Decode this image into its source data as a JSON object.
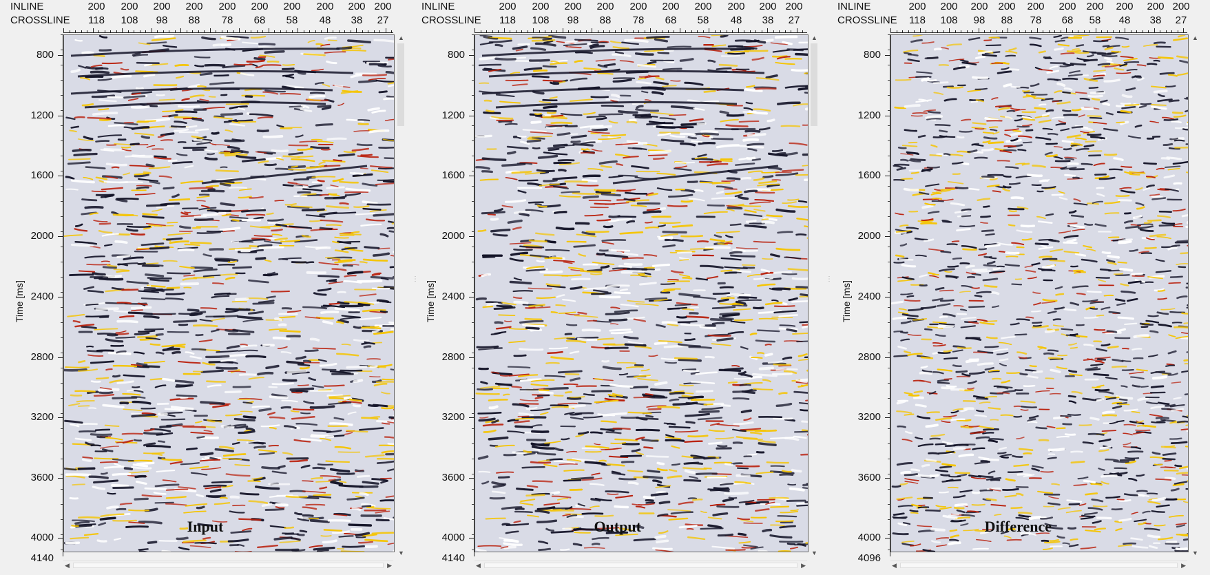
{
  "header": {
    "inline_label": "INLINE",
    "crossline_label": "CROSSLINE",
    "inline_values": [
      "200",
      "200",
      "200",
      "200",
      "200",
      "200",
      "200",
      "200",
      "200",
      "200"
    ],
    "crossline_values": [
      "118",
      "108",
      "98",
      "88",
      "78",
      "68",
      "58",
      "48",
      "38",
      "27"
    ]
  },
  "axis": {
    "title": "Time [ms]",
    "ticks": [
      "800",
      "1200",
      "1600",
      "2000",
      "2400",
      "2800",
      "3200",
      "3600",
      "4000"
    ]
  },
  "panels": [
    {
      "id": "input",
      "title": "Input",
      "end_label": "4140"
    },
    {
      "id": "output",
      "title": "Output",
      "end_label": "4140"
    },
    {
      "id": "difference",
      "title": "Difference",
      "end_label": "4096"
    }
  ],
  "colors": {
    "background": "#f0f0f0",
    "seismic_light": "#d9dbe6",
    "seismic_dark": "#141428",
    "seismic_red": "#b91e0a",
    "seismic_yellow": "#f5c400"
  }
}
